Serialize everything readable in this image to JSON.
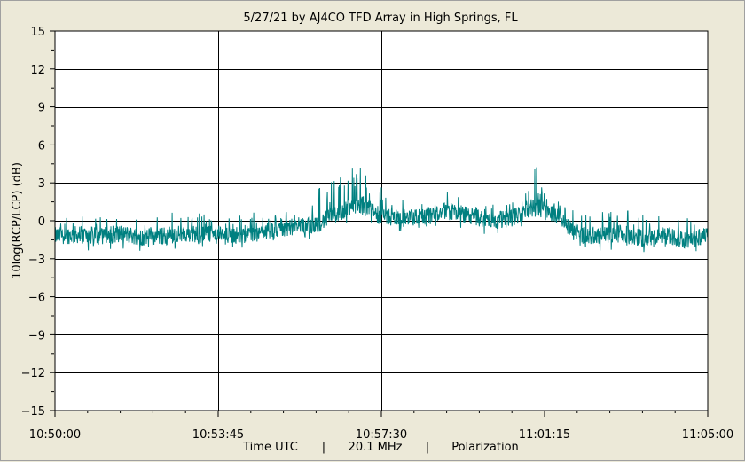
{
  "chart_data": {
    "type": "line",
    "title": "5/27/21  by  AJ4CO TFD Array  in  High Springs, FL",
    "ylabel": "10log(RCP/LCP)  (dB)",
    "xlabel_parts": [
      "Time UTC",
      "|",
      "20.1 MHz",
      "|",
      "Polarization"
    ],
    "ylim": [
      -15,
      15
    ],
    "yticks": [
      15,
      12,
      9,
      6,
      3,
      0,
      -3,
      -6,
      -9,
      -12,
      -15
    ],
    "xticks": [
      "10:50:00",
      "10:53:45",
      "10:57:30",
      "11:01:15",
      "11:05:00"
    ],
    "xlim_seconds": [
      0,
      900
    ],
    "grid": true,
    "series_color": "#008080",
    "series": [
      {
        "x": [
          0,
          30,
          60,
          90,
          120,
          150,
          180,
          210,
          240,
          270,
          300,
          330,
          360,
          390,
          420,
          450,
          480,
          510,
          540,
          570,
          600,
          630,
          660,
          690,
          720,
          750,
          780,
          810,
          840,
          870,
          900
        ],
        "values": [
          -1.2,
          -1.1,
          -1.2,
          -1.0,
          -1.3,
          -1.2,
          -1.0,
          -1.1,
          -1.2,
          -1.0,
          -0.8,
          -0.4,
          -0.3,
          0.6,
          1.3,
          0.4,
          0.2,
          0.3,
          0.8,
          0.4,
          0.0,
          0.2,
          1.2,
          0.5,
          -1.1,
          -1.2,
          -1.0,
          -1.4,
          -1.2,
          -1.5,
          -1.2
        ],
        "peaks_max": [
          0.1,
          0.5,
          0.4,
          0.8,
          0.3,
          0.5,
          1.2,
          0.4,
          0.3,
          0.7,
          0.5,
          1.1,
          2.5,
          3.8,
          4.5,
          2.7,
          1.8,
          2.0,
          2.3,
          2.0,
          1.2,
          2.0,
          4.7,
          1.8,
          0.6,
          0.7,
          0.9,
          0.6,
          0.4,
          0.3,
          0.0
        ]
      }
    ]
  }
}
